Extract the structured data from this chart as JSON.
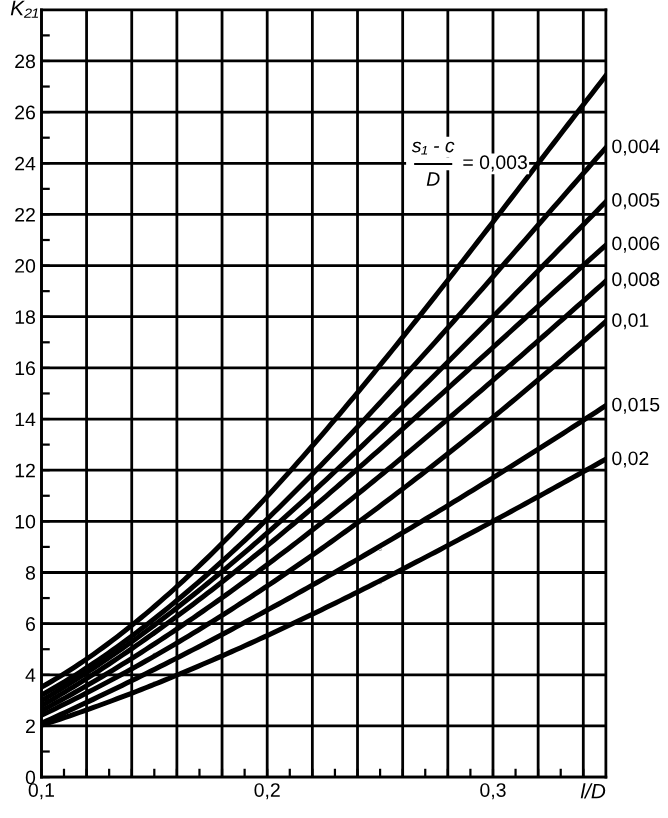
{
  "chart_data": {
    "type": "line",
    "xlabel": "l/D",
    "ylabel": "K₂₁",
    "annotations": [
      "s₁ - c",
      "D"
    ],
    "x": [
      0.1,
      0.15,
      0.2,
      0.25,
      0.3,
      0.35
    ],
    "series": [
      {
        "name": "= 0,003",
        "color": "#000000",
        "values": [
          3.5,
          6.7,
          11.0,
          16.0,
          21.8,
          27.4
        ]
      },
      {
        "name": "0,004",
        "color": "#000000",
        "values": [
          3.2,
          6.2,
          10.1,
          14.6,
          19.6,
          24.6
        ]
      },
      {
        "name": "0,005",
        "color": "#000000",
        "values": [
          3.0,
          5.9,
          9.6,
          13.6,
          18.0,
          22.5
        ]
      },
      {
        "name": "0,006",
        "color": "#000000",
        "values": [
          2.8,
          5.6,
          9.1,
          12.8,
          16.8,
          20.8
        ]
      },
      {
        "name": "0,008",
        "color": "#000000",
        "values": [
          2.6,
          5.2,
          8.3,
          11.8,
          15.5,
          19.4
        ]
      },
      {
        "name": "0,01",
        "color": "#000000",
        "values": [
          2.4,
          4.8,
          7.4,
          10.6,
          14.1,
          17.8
        ]
      },
      {
        "name": "0,015",
        "color": "#000000",
        "values": [
          2.1,
          4.2,
          6.6,
          8.9,
          11.8,
          14.5
        ]
      },
      {
        "name": "0,02",
        "color": "#000000",
        "values": [
          2.0,
          3.7,
          5.5,
          7.6,
          10.1,
          12.4
        ]
      }
    ],
    "xlim": [
      0.1,
      0.35
    ],
    "xticks": [
      {
        "value": 0.1,
        "label": "0,1"
      },
      {
        "value": 0.11,
        "label": null
      },
      {
        "value": 0.12,
        "label": null
      },
      {
        "value": 0.13,
        "label": null
      },
      {
        "value": 0.14,
        "label": null
      },
      {
        "value": 0.15,
        "label": null
      },
      {
        "value": 0.16,
        "label": null
      },
      {
        "value": 0.17,
        "label": null
      },
      {
        "value": 0.18,
        "label": null
      },
      {
        "value": 0.19,
        "label": null
      },
      {
        "value": 0.2,
        "label": "0,2"
      },
      {
        "value": 0.21,
        "label": null
      },
      {
        "value": 0.22,
        "label": null
      },
      {
        "value": 0.23,
        "label": null
      },
      {
        "value": 0.24,
        "label": null
      },
      {
        "value": 0.25,
        "label": null
      },
      {
        "value": 0.26,
        "label": null
      },
      {
        "value": 0.27,
        "label": null
      },
      {
        "value": 0.28,
        "label": null
      },
      {
        "value": 0.29,
        "label": null
      },
      {
        "value": 0.3,
        "label": "0,3"
      },
      {
        "value": 0.31,
        "label": null
      },
      {
        "value": 0.32,
        "label": null
      },
      {
        "value": 0.33,
        "label": null
      },
      {
        "value": 0.34,
        "label": null
      }
    ],
    "ylim": [
      0,
      30
    ],
    "yticks": [
      0,
      {
        "value": 1,
        "label": null
      },
      2,
      {
        "value": 3,
        "label": null
      },
      4,
      {
        "value": 5,
        "label": null
      },
      6,
      {
        "value": 7,
        "label": null
      },
      8,
      {
        "value": 9,
        "label": null
      },
      10,
      {
        "value": 11,
        "label": null
      },
      12,
      {
        "value": 13,
        "label": null
      },
      14,
      {
        "value": 15,
        "label": null
      },
      16,
      {
        "value": 17,
        "label": null
      },
      18,
      {
        "value": 19,
        "label": null
      },
      20,
      {
        "value": 21,
        "label": null
      },
      22,
      {
        "value": 23,
        "label": null
      },
      24,
      {
        "value": 25,
        "label": null
      },
      26,
      {
        "value": 27,
        "label": null
      },
      28,
      {
        "value": 29,
        "label": null
      }
    ],
    "grid": true,
    "line_style": "solid",
    "marker": "none"
  }
}
